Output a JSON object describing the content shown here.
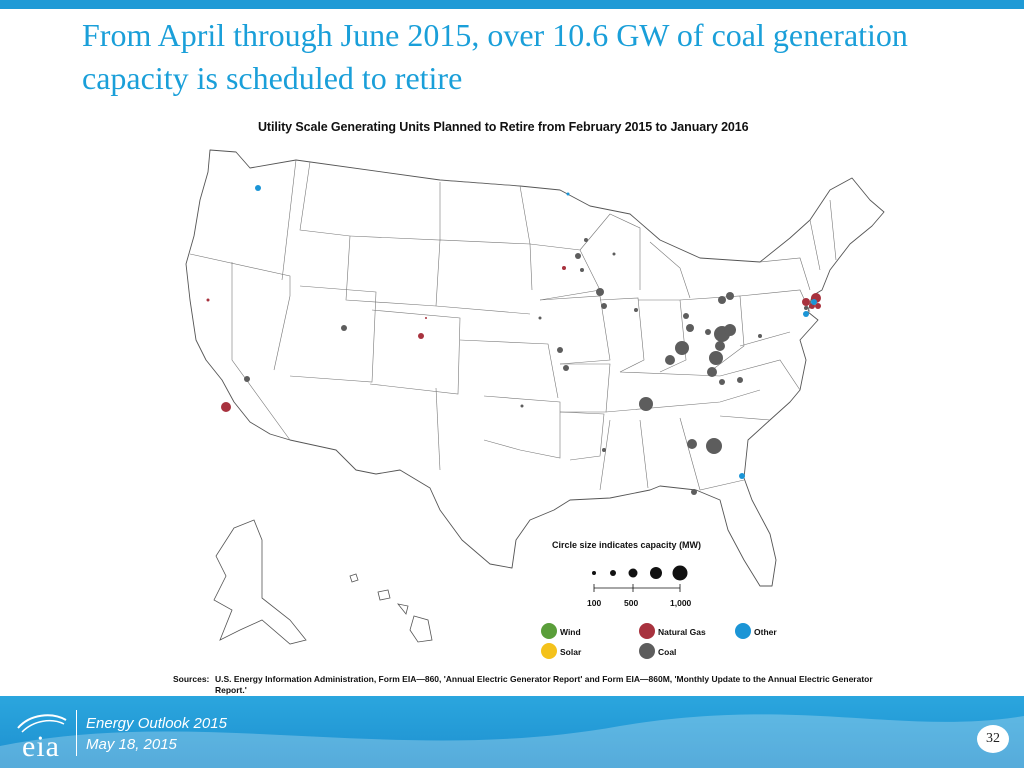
{
  "slide": {
    "title": "From April through June 2015, over 10.6 GW of coal generation capacity is scheduled to retire",
    "page_number": "32"
  },
  "map": {
    "title": "Utility Scale Generating Units Planned to Retire from February 2015 to January 2016",
    "sources_label": "Sources:",
    "sources_text": "U.S. Energy Information Administration, Form EIA—860, 'Annual Electric Generator Report' and Form EIA—860M, 'Monthly Update to the Annual Electric Generator Report.'",
    "size_legend": {
      "title": "Circle size indicates capacity (MW)",
      "ticks": [
        "100",
        "500",
        "1,000"
      ]
    },
    "fuel_legend": [
      {
        "label": "Wind",
        "color": "#5a9e3a"
      },
      {
        "label": "Natural Gas",
        "color": "#a8323e"
      },
      {
        "label": "Other",
        "color": "#1b95d6"
      },
      {
        "label": "Solar",
        "color": "#f4c21b"
      },
      {
        "label": "Coal",
        "color": "#5d5d5d"
      }
    ]
  },
  "footer": {
    "logo_text": "eia",
    "line1": "Energy  Outlook 2015",
    "line2": "May 18, 2015"
  }
}
